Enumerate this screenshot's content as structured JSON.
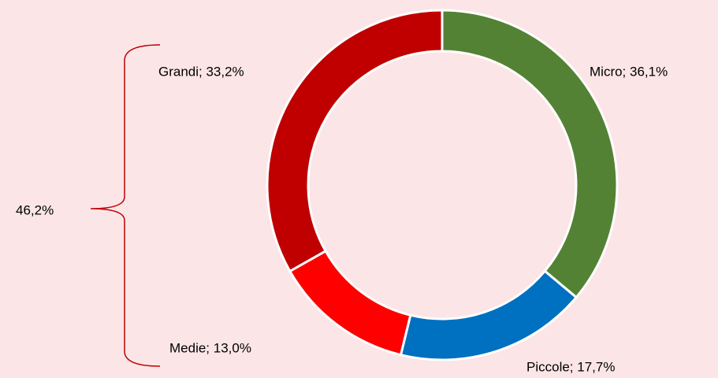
{
  "chart_data": {
    "type": "donut",
    "values": [
      36.1,
      17.7,
      13.0,
      33.2
    ],
    "value_labels": [
      "Micro; 36,1%",
      "Piccole; 17,7%",
      "Medie; 13,0%",
      "Grandi; 33,2%"
    ],
    "colors": [
      "#548235",
      "#0070c0",
      "#ff0000",
      "#c00000"
    ],
    "annotation": "46,2%"
  }
}
